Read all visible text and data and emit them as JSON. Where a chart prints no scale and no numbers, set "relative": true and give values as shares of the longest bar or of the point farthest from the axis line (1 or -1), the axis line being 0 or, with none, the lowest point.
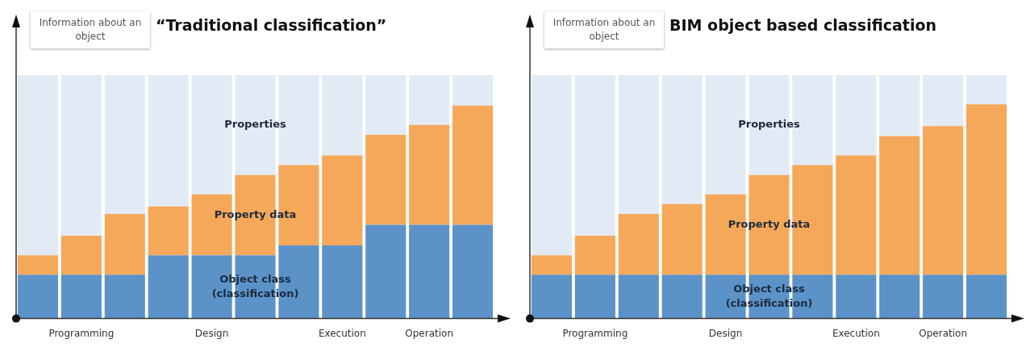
{
  "chart_data": [
    {
      "type": "bar",
      "title": "“Traditional classification”",
      "ylabel": "Information about an object",
      "relative": true,
      "stacked": true,
      "legend": false,
      "grid": false,
      "tick_labels": "x",
      "categories": [
        null,
        "Programming",
        null,
        null,
        "Design",
        null,
        null,
        "Execution",
        null,
        "Operation",
        null
      ],
      "series": [
        {
          "name": "Object class (classification)",
          "color": "#5b93c9",
          "values": [
            0.18,
            0.18,
            0.18,
            0.26,
            0.26,
            0.26,
            0.3,
            0.3,
            0.385,
            0.385,
            0.385
          ]
        },
        {
          "name": "Property data",
          "color": "#f5a85a",
          "values": [
            0.08,
            0.16,
            0.25,
            0.2,
            0.25,
            0.33,
            0.33,
            0.37,
            0.37,
            0.41,
            0.49
          ]
        },
        {
          "name": "Properties",
          "color": "#e2ebf5",
          "values": [
            0.74,
            0.66,
            0.57,
            0.54,
            0.49,
            0.41,
            0.37,
            0.33,
            0.245,
            0.205,
            0.125
          ]
        }
      ]
    },
    {
      "type": "bar",
      "title": "BIM object based classification",
      "ylabel": "Information about an object",
      "relative": true,
      "stacked": true,
      "legend": false,
      "grid": false,
      "tick_labels": "x",
      "categories": [
        null,
        "Programming",
        null,
        null,
        "Design",
        null,
        null,
        "Execution",
        null,
        "Operation",
        null
      ],
      "series": [
        {
          "name": "Object class (classification)",
          "color": "#5b93c9",
          "values": [
            0.18,
            0.18,
            0.18,
            0.18,
            0.18,
            0.18,
            0.18,
            0.18,
            0.18,
            0.18,
            0.18
          ]
        },
        {
          "name": "Property data",
          "color": "#f5a85a",
          "values": [
            0.08,
            0.16,
            0.25,
            0.29,
            0.33,
            0.41,
            0.45,
            0.49,
            0.57,
            0.61,
            0.7
          ]
        },
        {
          "name": "Properties",
          "color": "#e2ebf5",
          "values": [
            0.74,
            0.66,
            0.57,
            0.53,
            0.49,
            0.41,
            0.37,
            0.33,
            0.25,
            0.21,
            0.12
          ]
        }
      ]
    }
  ]
}
